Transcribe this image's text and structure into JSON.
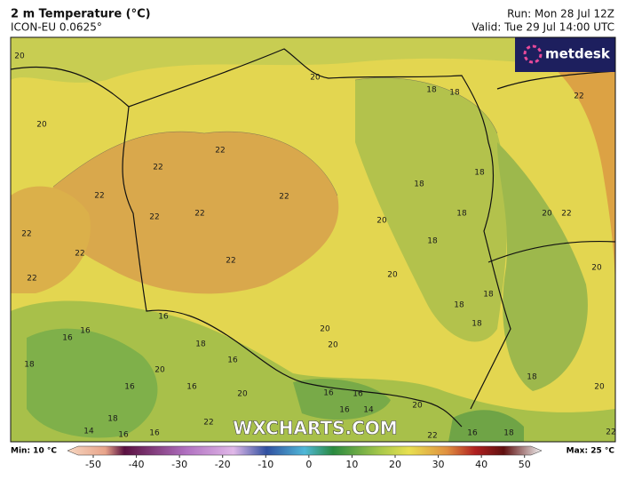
{
  "header": {
    "title": "2 m Temperature (°C)",
    "model": "ICON-EU 0.0625°",
    "run": "Run: Mon 28 Jul 12Z",
    "valid": "Valid: Tue 29 Jul 14:00 UTC"
  },
  "logo": "metdesk",
  "watermark": "WXCHARTS.COM",
  "contour_labels": [
    20,
    20,
    18,
    18,
    22,
    20,
    22,
    22,
    18,
    18,
    22,
    22,
    22,
    22,
    18,
    20,
    20,
    22,
    22,
    18,
    22,
    22,
    20,
    22,
    20,
    18,
    18,
    16,
    18,
    16,
    20,
    16,
    18,
    20,
    18,
    16,
    20,
    16,
    16,
    18,
    20,
    16,
    16,
    20,
    16,
    14,
    20,
    18,
    22,
    16,
    18,
    22,
    22,
    14,
    16,
    16
  ],
  "legend": {
    "min": "Min: 10 °C",
    "max": "Max: 25 °C",
    "colorbar": {
      "range": [
        -53.5,
        51.5
      ],
      "ticks": [
        -50,
        -40,
        -30,
        -20,
        -10,
        0,
        10,
        20,
        30,
        40,
        50
      ]
    }
  }
}
